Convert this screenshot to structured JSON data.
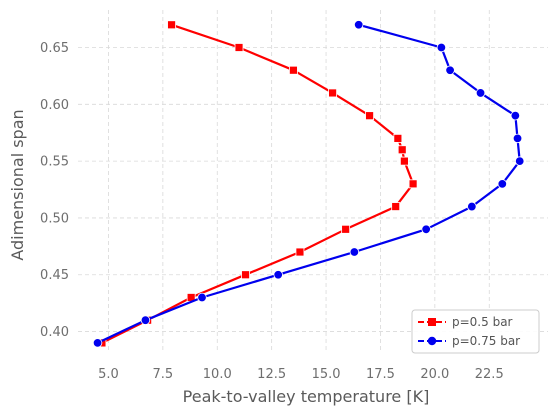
{
  "chart_data": {
    "type": "line",
    "title": "",
    "xlabel": "Peak-to-valley temperature [K]",
    "ylabel": "Adimensional span",
    "xlim": [
      3.6,
      25.2
    ],
    "ylim": [
      0.382,
      0.683
    ],
    "xticks": [
      "5.0",
      "7.5",
      "10.0",
      "12.5",
      "15.0",
      "17.5",
      "20.0",
      "22.5"
    ],
    "yticks": [
      "0.40",
      "0.45",
      "0.50",
      "0.55",
      "0.60",
      "0.65"
    ],
    "grid": true,
    "legend_position": "bottom-right",
    "series": [
      {
        "name": "p=0.5 bar",
        "color": "#ff0000",
        "marker": "square",
        "x": [
          4.7,
          6.8,
          8.8,
          11.3,
          13.8,
          15.9,
          18.2,
          19.0,
          18.6,
          18.5,
          18.3,
          17.0,
          15.3,
          13.5,
          11.0,
          7.9
        ],
        "y": [
          0.39,
          0.41,
          0.43,
          0.45,
          0.47,
          0.49,
          0.51,
          0.53,
          0.55,
          0.56,
          0.57,
          0.59,
          0.61,
          0.63,
          0.65,
          0.67
        ]
      },
      {
        "name": "p=0.75 bar",
        "color": "#0000ee",
        "marker": "circle",
        "x": [
          4.5,
          6.7,
          9.3,
          12.8,
          16.3,
          19.6,
          21.7,
          23.1,
          23.9,
          23.8,
          23.7,
          22.1,
          20.7,
          20.3,
          16.5
        ],
        "y": [
          0.39,
          0.41,
          0.43,
          0.45,
          0.47,
          0.49,
          0.51,
          0.53,
          0.55,
          0.57,
          0.59,
          0.61,
          0.63,
          0.65,
          0.67
        ]
      }
    ]
  }
}
